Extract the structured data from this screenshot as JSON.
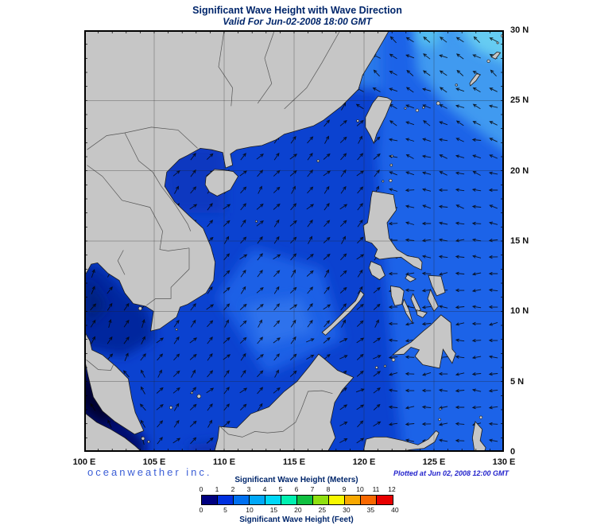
{
  "header": {
    "title": "Significant Wave Height with Wave Direction",
    "subtitle": "Valid For Jun-02-2008 18:00 GMT"
  },
  "map": {
    "lat_labels": [
      {
        "label": "30 N",
        "value": 30
      },
      {
        "label": "25 N",
        "value": 25
      },
      {
        "label": "20 N",
        "value": 20
      },
      {
        "label": "15 N",
        "value": 15
      },
      {
        "label": "10 N",
        "value": 10
      },
      {
        "label": "5 N",
        "value": 5
      },
      {
        "label": "0",
        "value": 0
      }
    ],
    "lon_labels": [
      {
        "label": "100 E",
        "value": 100
      },
      {
        "label": "105 E",
        "value": 105
      },
      {
        "label": "110 E",
        "value": 110
      },
      {
        "label": "115 E",
        "value": 115
      },
      {
        "label": "120 E",
        "value": 120
      },
      {
        "label": "125 E",
        "value": 125
      },
      {
        "label": "130 E",
        "value": 130
      }
    ],
    "ocean_base": "#0b42d0",
    "land_color": "#c6c6c6",
    "coast_color": "#1c1c1c",
    "grid_color": "#222222",
    "arrow_color": "#050505",
    "frame_color": "#000000"
  },
  "footer": {
    "branding": "oceanweather inc.",
    "plotted_at": "Plotted at Jun 02, 2008 12:00 GMT"
  },
  "legend": {
    "meters_title": "Significant Wave Height (Meters)",
    "feet_title": "Significant Wave Height (Feet)",
    "meter_ticks": [
      "0",
      "1",
      "2",
      "3",
      "4",
      "5",
      "6",
      "7",
      "8",
      "9",
      "10",
      "11",
      "12"
    ],
    "feet_ticks": [
      "0",
      "5",
      "10",
      "15",
      "20",
      "25",
      "30",
      "35",
      "40"
    ],
    "colors": [
      "#000080",
      "#0030e0",
      "#0070f0",
      "#00a8f8",
      "#00d8f8",
      "#00f0b0",
      "#10c040",
      "#90e010",
      "#f8f800",
      "#f8a800",
      "#f86800",
      "#e80000"
    ]
  }
}
